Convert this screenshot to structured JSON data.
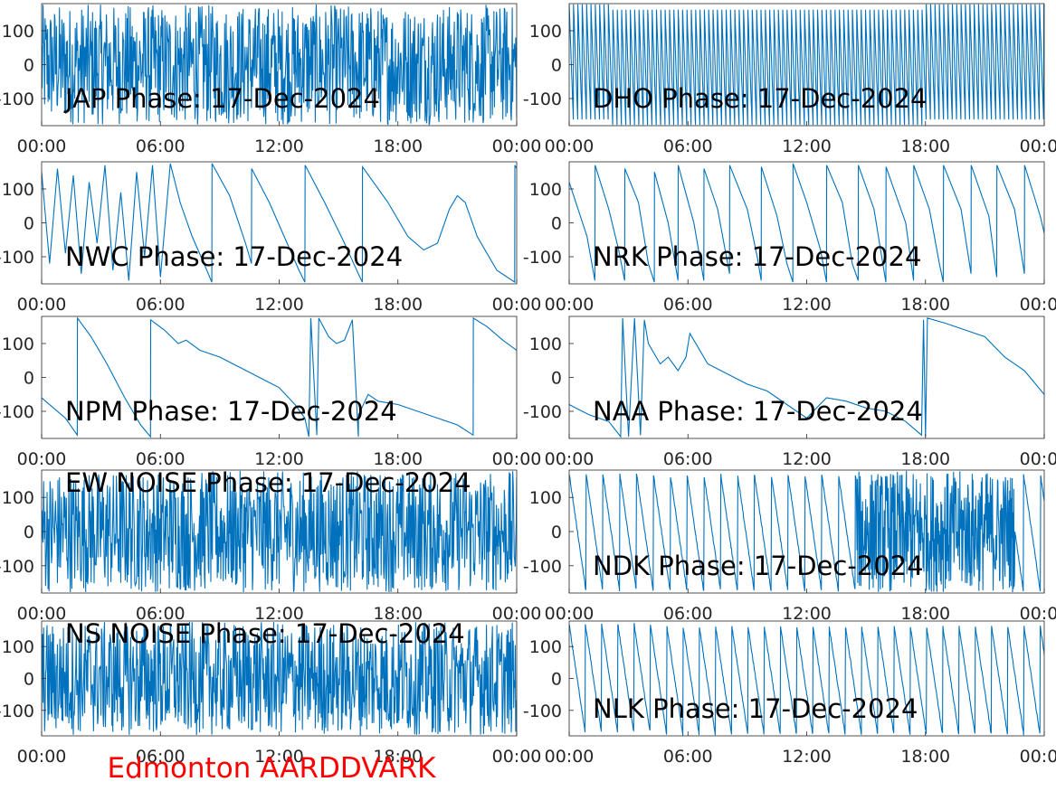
{
  "figure": {
    "footer_title": "Edmonton AARDDVARK",
    "footer_color": "#ff0000",
    "line_color": "#0072bd",
    "axis_color": "#262626"
  },
  "chart_data": [
    {
      "type": "line",
      "title": "JAP Phase: 17-Dec-2024",
      "xticks": [
        "00:00",
        "06:00",
        "12:00",
        "18:00",
        "00:00"
      ],
      "yticks": [
        "100",
        "0",
        "-100"
      ],
      "ylim": [
        -180,
        180
      ],
      "xlim_hours": [
        0,
        24
      ],
      "series": [
        {
          "pattern": "noise-dense",
          "description_values": "phase dense noise spanning full range"
        }
      ]
    },
    {
      "type": "line",
      "title": "DHO Phase: 17-Dec-2024",
      "xticks": [
        "00:00",
        "06:00",
        "12:00",
        "18:00",
        "00:00"
      ],
      "yticks": [
        "100",
        "0",
        "-100"
      ],
      "ylim": [
        -180,
        180
      ],
      "xlim_hours": [
        0,
        24
      ],
      "series": [
        {
          "pattern": "fast-sawtooth"
        }
      ]
    },
    {
      "type": "line",
      "title": "NWC Phase: 17-Dec-2024",
      "xticks": [
        "00:00",
        "06:00",
        "12:00",
        "18:00",
        "00:00"
      ],
      "yticks": [
        "100",
        "0",
        "-100"
      ],
      "ylim": [
        -180,
        180
      ],
      "xlim_hours": [
        0,
        24
      ],
      "series": [
        {
          "points": [
            [
              0.0,
              150
            ],
            [
              0.4,
              -120
            ],
            [
              0.8,
              160
            ],
            [
              1.2,
              -90
            ],
            [
              1.6,
              140
            ],
            [
              2.0,
              -150
            ],
            [
              2.4,
              120
            ],
            [
              2.8,
              -60
            ],
            [
              3.2,
              170
            ],
            [
              3.6,
              -140
            ],
            [
              4.0,
              90
            ],
            [
              4.4,
              -170
            ],
            [
              4.8,
              150
            ],
            [
              5.2,
              -100
            ],
            [
              5.6,
              170
            ],
            [
              6.0,
              -160
            ],
            [
              6.5,
              175
            ],
            [
              7.0,
              60
            ],
            [
              7.6,
              -40
            ],
            [
              8.2,
              -120
            ],
            [
              8.6,
              -175
            ],
            [
              8.61,
              175
            ],
            [
              9.5,
              80
            ],
            [
              10.3,
              -60
            ],
            [
              10.6,
              -120
            ],
            [
              10.61,
              160
            ],
            [
              11.5,
              60
            ],
            [
              12.4,
              -60
            ],
            [
              13.0,
              -140
            ],
            [
              13.3,
              -175
            ],
            [
              13.31,
              170
            ],
            [
              14.3,
              60
            ],
            [
              15.3,
              -60
            ],
            [
              16.0,
              -150
            ],
            [
              16.2,
              -175
            ],
            [
              16.21,
              165
            ],
            [
              17.5,
              60
            ],
            [
              18.5,
              -40
            ],
            [
              19.3,
              -80
            ],
            [
              20.0,
              -60
            ],
            [
              20.6,
              40
            ],
            [
              21.0,
              80
            ],
            [
              21.4,
              60
            ],
            [
              22.0,
              -40
            ],
            [
              23.0,
              -140
            ],
            [
              23.9,
              -175
            ],
            [
              23.91,
              170
            ],
            [
              24.0,
              160
            ]
          ]
        }
      ]
    },
    {
      "type": "line",
      "title": "NRK Phase: 17-Dec-2024",
      "xticks": [
        "00:00",
        "06:00",
        "12:00",
        "18:00",
        "00:00"
      ],
      "yticks": [
        "100",
        "0",
        "-100"
      ],
      "ylim": [
        -180,
        180
      ],
      "xlim_hours": [
        0,
        24
      ],
      "series": [
        {
          "points": [
            [
              0.0,
              120
            ],
            [
              0.9,
              -40
            ],
            [
              1.3,
              -170
            ],
            [
              1.31,
              170
            ],
            [
              2.0,
              40
            ],
            [
              2.5,
              -80
            ],
            [
              2.8,
              -170
            ],
            [
              2.81,
              160
            ],
            [
              3.5,
              60
            ],
            [
              4.0,
              -120
            ],
            [
              4.3,
              -175
            ],
            [
              4.31,
              150
            ],
            [
              5.0,
              0
            ],
            [
              5.5,
              -170
            ],
            [
              5.51,
              170
            ],
            [
              6.3,
              0
            ],
            [
              6.8,
              -170
            ],
            [
              6.81,
              160
            ],
            [
              7.5,
              40
            ],
            [
              8.1,
              -150
            ],
            [
              8.11,
              170
            ],
            [
              9.0,
              40
            ],
            [
              9.5,
              -100
            ],
            [
              9.7,
              -170
            ],
            [
              9.71,
              165
            ],
            [
              10.5,
              20
            ],
            [
              11.0,
              -120
            ],
            [
              11.3,
              -175
            ],
            [
              11.31,
              175
            ],
            [
              12.0,
              60
            ],
            [
              12.7,
              -80
            ],
            [
              13.0,
              -175
            ],
            [
              13.01,
              170
            ],
            [
              13.8,
              60
            ],
            [
              14.3,
              -120
            ],
            [
              14.6,
              -170
            ],
            [
              14.61,
              170
            ],
            [
              15.4,
              40
            ],
            [
              15.9,
              -140
            ],
            [
              16.0,
              -175
            ],
            [
              16.01,
              165
            ],
            [
              17.0,
              0
            ],
            [
              17.4,
              -170
            ],
            [
              17.41,
              170
            ],
            [
              18.2,
              40
            ],
            [
              18.7,
              -120
            ],
            [
              18.9,
              -175
            ],
            [
              18.91,
              170
            ],
            [
              19.8,
              40
            ],
            [
              20.3,
              -150
            ],
            [
              20.31,
              170
            ],
            [
              21.2,
              20
            ],
            [
              21.6,
              -160
            ],
            [
              21.61,
              170
            ],
            [
              22.5,
              40
            ],
            [
              23.0,
              -150
            ],
            [
              23.01,
              170
            ],
            [
              23.8,
              20
            ],
            [
              24.0,
              -30
            ]
          ]
        }
      ]
    },
    {
      "type": "line",
      "title": "NPM Phase: 17-Dec-2024",
      "xticks": [
        "00:00",
        "06:00",
        "12:00",
        "18:00",
        "00:00"
      ],
      "yticks": [
        "100",
        "0",
        "-100"
      ],
      "ylim": [
        -180,
        180
      ],
      "xlim_hours": [
        0,
        24
      ],
      "series": [
        {
          "points": [
            [
              0.0,
              -60
            ],
            [
              0.6,
              -90
            ],
            [
              1.2,
              -120
            ],
            [
              1.8,
              -170
            ],
            [
              1.81,
              175
            ],
            [
              2.5,
              120
            ],
            [
              3.3,
              40
            ],
            [
              4.2,
              -60
            ],
            [
              5.0,
              -140
            ],
            [
              5.5,
              -175
            ],
            [
              5.51,
              170
            ],
            [
              6.2,
              140
            ],
            [
              6.9,
              100
            ],
            [
              7.3,
              110
            ],
            [
              8.0,
              80
            ],
            [
              9.0,
              60
            ],
            [
              10.0,
              30
            ],
            [
              11.0,
              0
            ],
            [
              12.0,
              -30
            ],
            [
              12.8,
              -80
            ],
            [
              13.3,
              -120
            ],
            [
              13.5,
              -175
            ],
            [
              13.6,
              175
            ],
            [
              13.9,
              -170
            ],
            [
              14.0,
              175
            ],
            [
              14.5,
              120
            ],
            [
              14.9,
              100
            ],
            [
              15.3,
              110
            ],
            [
              15.7,
              170
            ],
            [
              16.0,
              -175
            ],
            [
              16.01,
              -110
            ],
            [
              16.5,
              -50
            ],
            [
              17.0,
              -70
            ],
            [
              18.0,
              -80
            ],
            [
              19.0,
              -100
            ],
            [
              20.0,
              -120
            ],
            [
              21.0,
              -140
            ],
            [
              21.8,
              -170
            ],
            [
              21.81,
              175
            ],
            [
              22.5,
              150
            ],
            [
              23.3,
              110
            ],
            [
              24.0,
              80
            ]
          ]
        }
      ]
    },
    {
      "type": "line",
      "title": "NAA Phase: 17-Dec-2024",
      "xticks": [
        "00:00",
        "06:00",
        "12:00",
        "18:00",
        "00:00"
      ],
      "yticks": [
        "100",
        "0",
        "-100"
      ],
      "ylim": [
        -180,
        180
      ],
      "xlim_hours": [
        0,
        24
      ],
      "series": [
        {
          "points": [
            [
              0.0,
              -80
            ],
            [
              1.0,
              -110
            ],
            [
              2.0,
              -130
            ],
            [
              2.6,
              -175
            ],
            [
              2.7,
              175
            ],
            [
              3.0,
              -175
            ],
            [
              3.3,
              175
            ],
            [
              3.6,
              -170
            ],
            [
              3.8,
              170
            ],
            [
              4.0,
              100
            ],
            [
              4.6,
              40
            ],
            [
              5.0,
              60
            ],
            [
              5.5,
              20
            ],
            [
              5.9,
              60
            ],
            [
              6.1,
              130
            ],
            [
              6.5,
              90
            ],
            [
              7.0,
              40
            ],
            [
              8.0,
              10
            ],
            [
              9.0,
              -20
            ],
            [
              10.0,
              -40
            ],
            [
              11.0,
              -80
            ],
            [
              12.0,
              -120
            ],
            [
              13.0,
              -60
            ],
            [
              14.0,
              -70
            ],
            [
              15.0,
              -90
            ],
            [
              16.0,
              -100
            ],
            [
              17.0,
              -130
            ],
            [
              17.8,
              -170
            ],
            [
              17.9,
              170
            ],
            [
              18.0,
              -175
            ],
            [
              18.1,
              175
            ],
            [
              19.0,
              160
            ],
            [
              20.0,
              140
            ],
            [
              21.0,
              120
            ],
            [
              22.0,
              60
            ],
            [
              23.0,
              20
            ],
            [
              24.0,
              -50
            ]
          ]
        }
      ]
    },
    {
      "type": "line",
      "title": "EW NOISE Phase: 17-Dec-2024",
      "xticks": [
        "00:00",
        "06:00",
        "12:00",
        "18:00",
        "00:00"
      ],
      "yticks": [
        "100",
        "0",
        "-100"
      ],
      "ylim": [
        -180,
        180
      ],
      "xlim_hours": [
        0,
        24
      ],
      "series": [
        {
          "pattern": "noise-dense"
        }
      ]
    },
    {
      "type": "line",
      "title": "NDK Phase: 17-Dec-2024",
      "xticks": [
        "00:00",
        "06:00",
        "12:00",
        "18:00",
        "00:00"
      ],
      "yticks": [
        "100",
        "0",
        "-100"
      ],
      "ylim": [
        -180,
        180
      ],
      "xlim_hours": [
        0,
        24
      ],
      "series": [
        {
          "pattern": "sawtooth-then-noise"
        }
      ]
    },
    {
      "type": "line",
      "title": "NS NOISE Phase: 17-Dec-2024",
      "xticks": [
        "00:00",
        "06:00",
        "12:00",
        "18:00",
        "00:00"
      ],
      "yticks": [
        "100",
        "0",
        "-100"
      ],
      "ylim": [
        -180,
        180
      ],
      "xlim_hours": [
        0,
        24
      ],
      "series": [
        {
          "pattern": "noise-dense"
        }
      ]
    },
    {
      "type": "line",
      "title": "NLK Phase: 17-Dec-2024",
      "xticks": [
        "00:00",
        "06:00",
        "12:00",
        "18:00",
        "00:00"
      ],
      "yticks": [
        "100",
        "0",
        "-100"
      ],
      "ylim": [
        -180,
        180
      ],
      "xlim_hours": [
        0,
        24
      ],
      "series": [
        {
          "pattern": "sawtooth"
        }
      ]
    }
  ]
}
